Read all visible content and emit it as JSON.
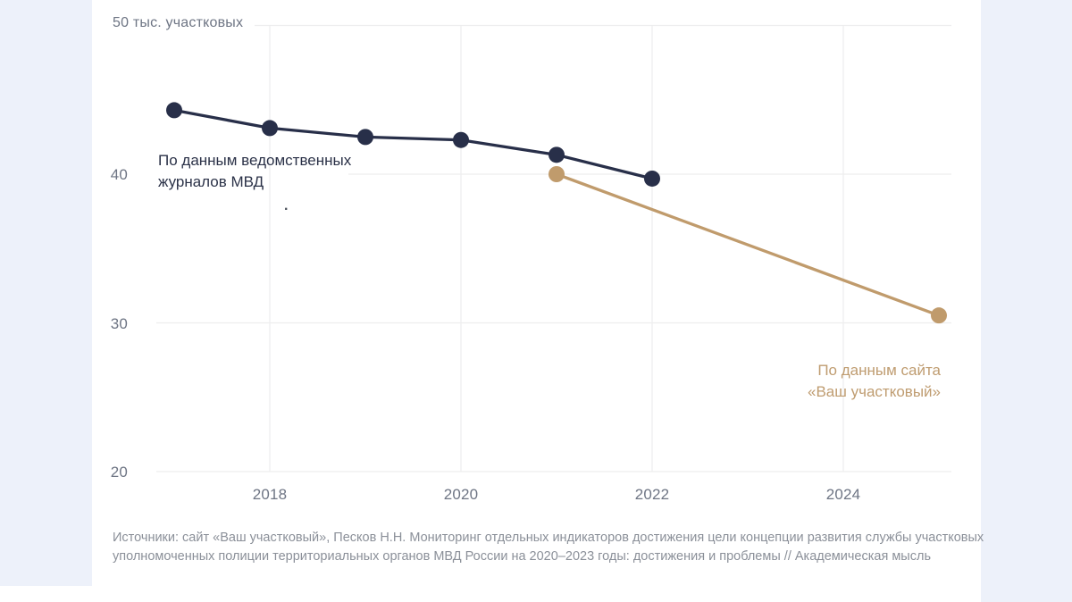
{
  "page": {
    "card_bg": "#ffffff",
    "panel_bg": "#edf1fa",
    "grid_color": "#ededee"
  },
  "chart_data": {
    "type": "line",
    "title": "",
    "y_axis": {
      "top_label": "50 тыс. участковых",
      "unit": "тыс. участковых",
      "tick_values": [
        40,
        30,
        20
      ],
      "gridline_values": [
        50,
        40,
        30,
        20
      ],
      "range": [
        20,
        50
      ]
    },
    "x_axis": {
      "tick_values": [
        2018,
        2020,
        2022,
        2024
      ],
      "range": [
        2016.8,
        2025.3
      ]
    },
    "grid": true,
    "legend_position": "inline-annotations",
    "series": [
      {
        "id": "mvd",
        "label": "По данным ведомственных журналов МВД",
        "label_lines": [
          "По данным ведомственных",
          "журналов МВД"
        ],
        "color": "#282f49",
        "x": [
          2017,
          2018,
          2019,
          2020,
          2021,
          2022
        ],
        "values": [
          44.3,
          43.1,
          42.5,
          42.3,
          41.3,
          39.7
        ]
      },
      {
        "id": "site",
        "label": "По данным сайта «Ваш участковый»",
        "label_lines": [
          "По данным сайта",
          "«Ваш участковый»"
        ],
        "color": "#c09b6c",
        "x": [
          2021,
          2025
        ],
        "values": [
          40,
          30.5
        ]
      }
    ]
  },
  "source": {
    "lines": [
      "Источники: сайт «Ваш участковый», Песков Н.Н. Мониторинг отдельных индикаторов достижения цели концепции развития службы участковых",
      "уполномоченных полиции территориальных органов МВД России на 2020–2023 годы: достижения и проблемы // Академическая мысль"
    ]
  },
  "artifacts": {
    "stray_period": "."
  }
}
